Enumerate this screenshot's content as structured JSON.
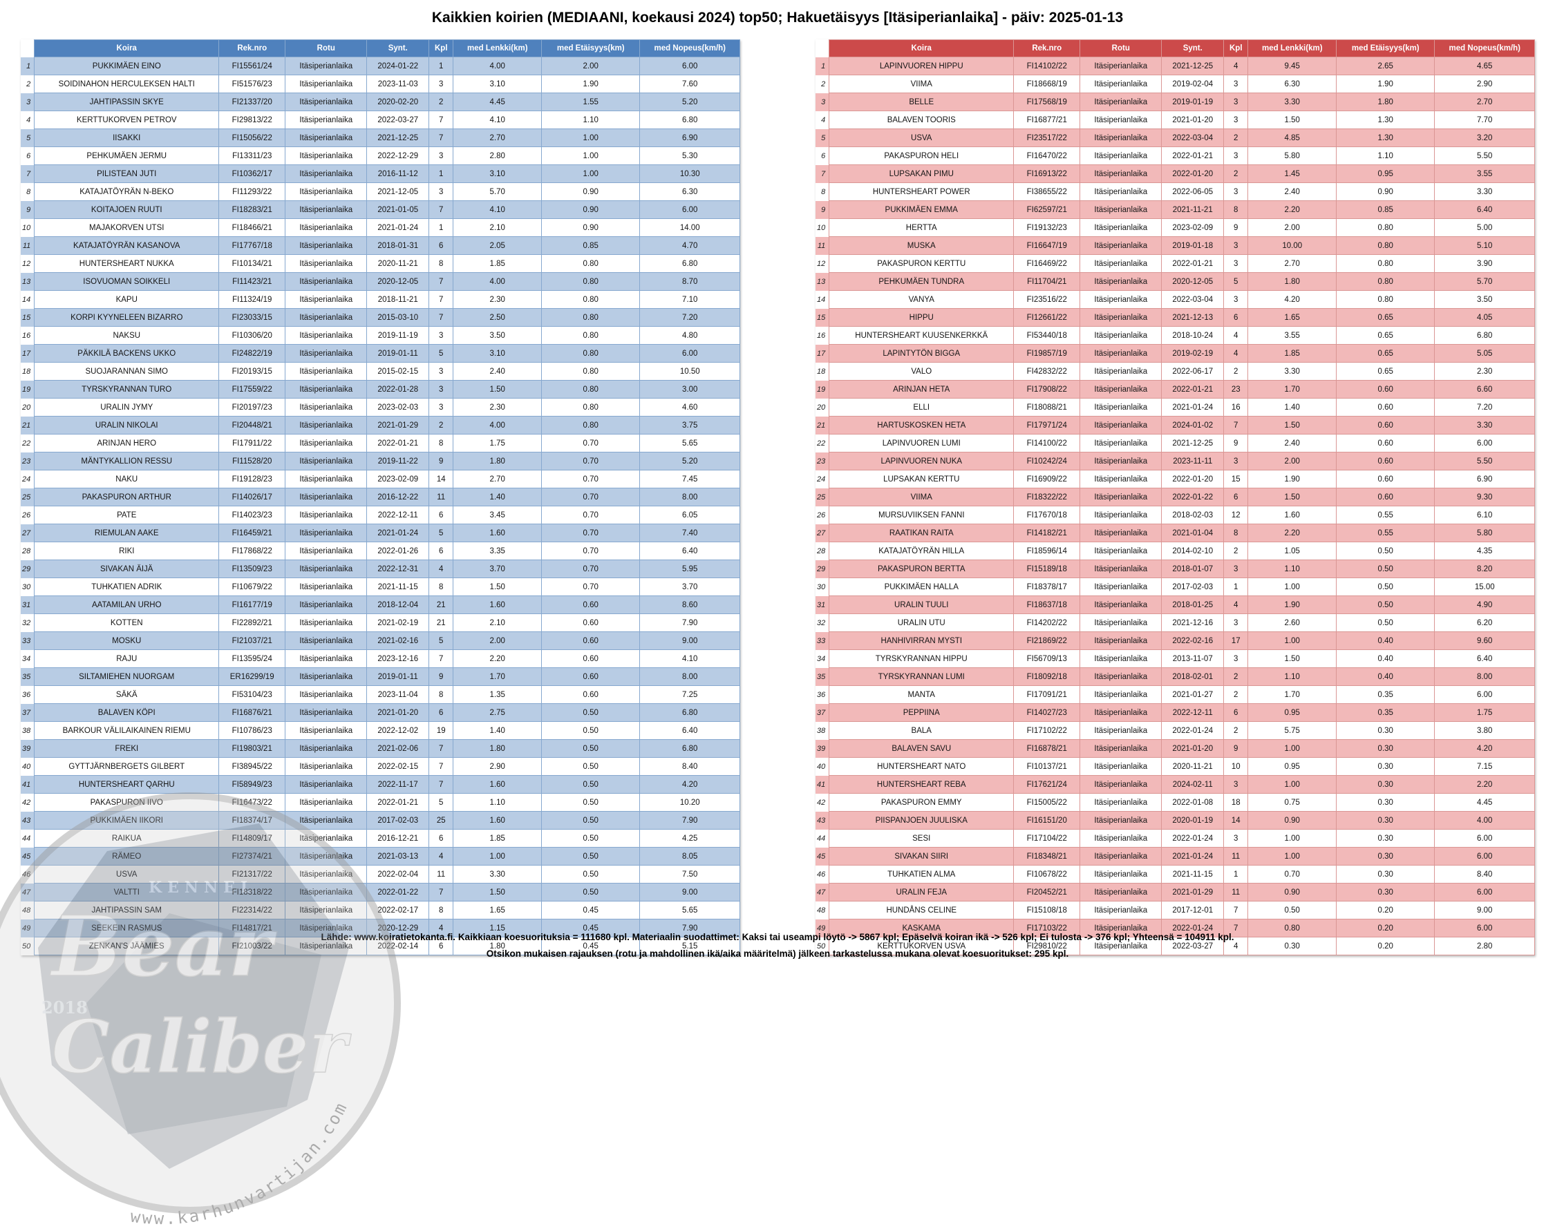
{
  "title": "Kaikkien koirien (MEDIAANI, koekausi 2024) top50; Hakuetäisyys [Itäsiperianlaika] - päiv: 2025-01-13",
  "columns": [
    "Koira",
    "Rek.nro",
    "Rotu",
    "Synt.",
    "Kpl",
    "med Lenkki(km)",
    "med Etäisyys(km)",
    "med Nopeus(km/h)"
  ],
  "breed": "Itäsiperianlaika",
  "left_table": {
    "colors": {
      "header": "#4f81bd",
      "row_alt": "#b8cce4",
      "border": "#86a8cf"
    },
    "rows": [
      [
        "1",
        "PUKKIMÄEN EINO",
        "FI15561/24",
        "2024-01-22",
        "1",
        "4.00",
        "2.00",
        "6.00"
      ],
      [
        "2",
        "SOIDINAHON HERCULEKSEN HALTI",
        "FI51576/23",
        "2023-11-03",
        "3",
        "3.10",
        "1.90",
        "7.60"
      ],
      [
        "3",
        "JAHTIPASSIN SKYE",
        "FI21337/20",
        "2020-02-20",
        "2",
        "4.45",
        "1.55",
        "5.20"
      ],
      [
        "4",
        "KERTTUKORVEN PETROV",
        "FI29813/22",
        "2022-03-27",
        "7",
        "4.10",
        "1.10",
        "6.80"
      ],
      [
        "5",
        "IISAKKI",
        "FI15056/22",
        "2021-12-25",
        "7",
        "2.70",
        "1.00",
        "6.90"
      ],
      [
        "6",
        "PEHKUMÄEN JERMU",
        "FI13311/23",
        "2022-12-29",
        "3",
        "2.80",
        "1.00",
        "5.30"
      ],
      [
        "7",
        "PILISTEAN JUTI",
        "FI10362/17",
        "2016-11-12",
        "1",
        "3.10",
        "1.00",
        "10.30"
      ],
      [
        "8",
        "KATAJATÖYRÄN N-BEKO",
        "FI11293/22",
        "2021-12-05",
        "3",
        "5.70",
        "0.90",
        "6.30"
      ],
      [
        "9",
        "KOITAJOEN RUUTI",
        "FI18283/21",
        "2021-01-05",
        "7",
        "4.10",
        "0.90",
        "6.00"
      ],
      [
        "10",
        "MAJAKORVEN UTSI",
        "FI18466/21",
        "2021-01-24",
        "1",
        "2.10",
        "0.90",
        "14.00"
      ],
      [
        "11",
        "KATAJATÖYRÄN KASANOVA",
        "FI17767/18",
        "2018-01-31",
        "6",
        "2.05",
        "0.85",
        "4.70"
      ],
      [
        "12",
        "HUNTERSHEART NUKKA",
        "FI10134/21",
        "2020-11-21",
        "8",
        "1.85",
        "0.80",
        "6.80"
      ],
      [
        "13",
        "ISOVUOMAN SOIKKELI",
        "FI11423/21",
        "2020-12-05",
        "7",
        "4.00",
        "0.80",
        "8.70"
      ],
      [
        "14",
        "KAPU",
        "FI11324/19",
        "2018-11-21",
        "7",
        "2.30",
        "0.80",
        "7.10"
      ],
      [
        "15",
        "KORPI KYYNELEEN BIZARRO",
        "FI23033/15",
        "2015-03-10",
        "7",
        "2.50",
        "0.80",
        "7.20"
      ],
      [
        "16",
        "NAKSU",
        "FI10306/20",
        "2019-11-19",
        "3",
        "3.50",
        "0.80",
        "4.80"
      ],
      [
        "17",
        "PÄKKILÄ BACKENS UKKO",
        "FI24822/19",
        "2019-01-11",
        "5",
        "3.10",
        "0.80",
        "6.00"
      ],
      [
        "18",
        "SUOJARANNAN SIMO",
        "FI20193/15",
        "2015-02-15",
        "3",
        "2.40",
        "0.80",
        "10.50"
      ],
      [
        "19",
        "TYRSKYRANNAN TURO",
        "FI17559/22",
        "2022-01-28",
        "3",
        "1.50",
        "0.80",
        "3.00"
      ],
      [
        "20",
        "URALIN JYMY",
        "FI20197/23",
        "2023-02-03",
        "3",
        "2.30",
        "0.80",
        "4.60"
      ],
      [
        "21",
        "URALIN NIKOLAI",
        "FI20448/21",
        "2021-01-29",
        "2",
        "4.00",
        "0.80",
        "3.75"
      ],
      [
        "22",
        "ARINJAN HERO",
        "FI17911/22",
        "2022-01-21",
        "8",
        "1.75",
        "0.70",
        "5.65"
      ],
      [
        "23",
        "MÄNTYKALLION RESSU",
        "FI11528/20",
        "2019-11-22",
        "9",
        "1.80",
        "0.70",
        "5.20"
      ],
      [
        "24",
        "NAKU",
        "FI19128/23",
        "2023-02-09",
        "14",
        "2.70",
        "0.70",
        "7.45"
      ],
      [
        "25",
        "PAKASPURON ARTHUR",
        "FI14026/17",
        "2016-12-22",
        "11",
        "1.40",
        "0.70",
        "8.00"
      ],
      [
        "26",
        "PATE",
        "FI14023/23",
        "2022-12-11",
        "6",
        "3.45",
        "0.70",
        "6.05"
      ],
      [
        "27",
        "RIEMULAN AAKE",
        "FI16459/21",
        "2021-01-24",
        "5",
        "1.60",
        "0.70",
        "7.40"
      ],
      [
        "28",
        "RIKI",
        "FI17868/22",
        "2022-01-26",
        "6",
        "3.35",
        "0.70",
        "6.40"
      ],
      [
        "29",
        "SIVAKAN ÄIJÄ",
        "FI13509/23",
        "2022-12-31",
        "4",
        "3.70",
        "0.70",
        "5.95"
      ],
      [
        "30",
        "TUHKATIEN ADRIK",
        "FI10679/22",
        "2021-11-15",
        "8",
        "1.50",
        "0.70",
        "3.70"
      ],
      [
        "31",
        "AATAMILAN URHO",
        "FI16177/19",
        "2018-12-04",
        "21",
        "1.60",
        "0.60",
        "8.60"
      ],
      [
        "32",
        "KOTTEN",
        "FI22892/21",
        "2021-02-19",
        "21",
        "2.10",
        "0.60",
        "7.90"
      ],
      [
        "33",
        "MOSKU",
        "FI21037/21",
        "2021-02-16",
        "5",
        "2.00",
        "0.60",
        "9.00"
      ],
      [
        "34",
        "RAJU",
        "FI13595/24",
        "2023-12-16",
        "7",
        "2.20",
        "0.60",
        "4.10"
      ],
      [
        "35",
        "SILTAMIEHEN NUORGAM",
        "ER16299/19",
        "2019-01-11",
        "9",
        "1.70",
        "0.60",
        "8.00"
      ],
      [
        "36",
        "SÄKÄ",
        "FI53104/23",
        "2023-11-04",
        "8",
        "1.35",
        "0.60",
        "7.25"
      ],
      [
        "37",
        "BALAVEN KÖPI",
        "FI16876/21",
        "2021-01-20",
        "6",
        "2.75",
        "0.50",
        "6.80"
      ],
      [
        "38",
        "BARKOUR VÄLILAIKAINEN RIEMU",
        "FI10786/23",
        "2022-12-02",
        "19",
        "1.40",
        "0.50",
        "6.40"
      ],
      [
        "39",
        "FREKI",
        "FI19803/21",
        "2021-02-06",
        "7",
        "1.80",
        "0.50",
        "6.80"
      ],
      [
        "40",
        "GYTTJÄRNBERGETS GILBERT",
        "FI38945/22",
        "2022-02-15",
        "7",
        "2.90",
        "0.50",
        "8.40"
      ],
      [
        "41",
        "HUNTERSHEART QARHU",
        "FI58949/23",
        "2022-11-17",
        "7",
        "1.60",
        "0.50",
        "4.20"
      ],
      [
        "42",
        "PAKASPURON IIVO",
        "FI16473/22",
        "2022-01-21",
        "5",
        "1.10",
        "0.50",
        "10.20"
      ],
      [
        "43",
        "PUKKIMÄEN IIKORI",
        "FI18374/17",
        "2017-02-03",
        "25",
        "1.60",
        "0.50",
        "7.90"
      ],
      [
        "44",
        "RAIKUA",
        "FI14809/17",
        "2016-12-21",
        "6",
        "1.85",
        "0.50",
        "4.25"
      ],
      [
        "45",
        "RÄMEO",
        "FI27374/21",
        "2021-03-13",
        "4",
        "1.00",
        "0.50",
        "8.05"
      ],
      [
        "46",
        "USVA",
        "FI21317/22",
        "2022-02-04",
        "11",
        "3.30",
        "0.50",
        "7.50"
      ],
      [
        "47",
        "VALTTI",
        "FI18318/22",
        "2022-01-22",
        "7",
        "1.50",
        "0.50",
        "9.00"
      ],
      [
        "48",
        "JAHTIPASSIN SAM",
        "FI22314/22",
        "2022-02-17",
        "8",
        "1.65",
        "0.45",
        "5.65"
      ],
      [
        "49",
        "SEEKEIN RASMUS",
        "FI14817/21",
        "2020-12-29",
        "4",
        "1.15",
        "0.45",
        "7.90"
      ],
      [
        "50",
        "ZENKAN'S JÄÄMIES",
        "FI21003/22",
        "2022-02-14",
        "6",
        "1.80",
        "0.45",
        "5.15"
      ]
    ]
  },
  "right_table": {
    "colors": {
      "header": "#cc4a4a",
      "row_alt": "#f2b9b9",
      "border": "#da9694"
    },
    "rows": [
      [
        "1",
        "LAPINVUOREN HIPPU",
        "FI14102/22",
        "2021-12-25",
        "4",
        "9.45",
        "2.65",
        "4.65"
      ],
      [
        "2",
        "VIIMA",
        "FI18668/19",
        "2019-02-04",
        "3",
        "6.30",
        "1.90",
        "2.90"
      ],
      [
        "3",
        "BELLE",
        "FI17568/19",
        "2019-01-19",
        "3",
        "3.30",
        "1.80",
        "2.70"
      ],
      [
        "4",
        "BALAVEN TOORIS",
        "FI16877/21",
        "2021-01-20",
        "3",
        "1.50",
        "1.30",
        "7.70"
      ],
      [
        "5",
        "USVA",
        "FI23517/22",
        "2022-03-04",
        "2",
        "4.85",
        "1.30",
        "3.20"
      ],
      [
        "6",
        "PAKASPURON HELI",
        "FI16470/22",
        "2022-01-21",
        "3",
        "5.80",
        "1.10",
        "5.50"
      ],
      [
        "7",
        "LUPSAKAN PIMU",
        "FI16913/22",
        "2022-01-20",
        "2",
        "1.45",
        "0.95",
        "3.55"
      ],
      [
        "8",
        "HUNTERSHEART POWER",
        "FI38655/22",
        "2022-06-05",
        "3",
        "2.40",
        "0.90",
        "3.30"
      ],
      [
        "9",
        "PUKKIMÄEN EMMA",
        "FI62597/21",
        "2021-11-21",
        "8",
        "2.20",
        "0.85",
        "6.40"
      ],
      [
        "10",
        "HERTTA",
        "FI19132/23",
        "2023-02-09",
        "9",
        "2.00",
        "0.80",
        "5.00"
      ],
      [
        "11",
        "MUSKA",
        "FI16647/19",
        "2019-01-18",
        "3",
        "10.00",
        "0.80",
        "5.10"
      ],
      [
        "12",
        "PAKASPURON KERTTU",
        "FI16469/22",
        "2022-01-21",
        "3",
        "2.70",
        "0.80",
        "3.90"
      ],
      [
        "13",
        "PEHKUMÄEN TUNDRA",
        "FI11704/21",
        "2020-12-05",
        "5",
        "1.80",
        "0.80",
        "5.70"
      ],
      [
        "14",
        "VANYA",
        "FI23516/22",
        "2022-03-04",
        "3",
        "4.20",
        "0.80",
        "3.50"
      ],
      [
        "15",
        "HIPPU",
        "FI12661/22",
        "2021-12-13",
        "6",
        "1.65",
        "0.65",
        "4.05"
      ],
      [
        "16",
        "HUNTERSHEART KUUSENKERKKÄ",
        "FI53440/18",
        "2018-10-24",
        "4",
        "3.55",
        "0.65",
        "6.80"
      ],
      [
        "17",
        "LAPINTYTÖN BIGGA",
        "FI19857/19",
        "2019-02-19",
        "4",
        "1.85",
        "0.65",
        "5.05"
      ],
      [
        "18",
        "VALO",
        "FI42832/22",
        "2022-06-17",
        "2",
        "3.30",
        "0.65",
        "2.30"
      ],
      [
        "19",
        "ARINJAN HETA",
        "FI17908/22",
        "2022-01-21",
        "23",
        "1.70",
        "0.60",
        "6.60"
      ],
      [
        "20",
        "ELLI",
        "FI18088/21",
        "2021-01-24",
        "16",
        "1.40",
        "0.60",
        "7.20"
      ],
      [
        "21",
        "HARTUSKOSKEN HETA",
        "FI17971/24",
        "2024-01-02",
        "7",
        "1.50",
        "0.60",
        "3.30"
      ],
      [
        "22",
        "LAPINVUOREN LUMI",
        "FI14100/22",
        "2021-12-25",
        "9",
        "2.40",
        "0.60",
        "6.00"
      ],
      [
        "23",
        "LAPINVUOREN NUKA",
        "FI10242/24",
        "2023-11-11",
        "3",
        "2.00",
        "0.60",
        "5.50"
      ],
      [
        "24",
        "LUPSAKAN KERTTU",
        "FI16909/22",
        "2022-01-20",
        "15",
        "1.90",
        "0.60",
        "6.90"
      ],
      [
        "25",
        "VIIMA",
        "FI18322/22",
        "2022-01-22",
        "6",
        "1.50",
        "0.60",
        "9.30"
      ],
      [
        "26",
        "MURSUVIIKSEN FANNI",
        "FI17670/18",
        "2018-02-03",
        "12",
        "1.60",
        "0.55",
        "6.10"
      ],
      [
        "27",
        "RAATIKAN RAITA",
        "FI14182/21",
        "2021-01-04",
        "8",
        "2.20",
        "0.55",
        "5.80"
      ],
      [
        "28",
        "KATAJATÖYRÄN HILLA",
        "FI18596/14",
        "2014-02-10",
        "2",
        "1.05",
        "0.50",
        "4.35"
      ],
      [
        "29",
        "PAKASPURON BERTTA",
        "FI15189/18",
        "2018-01-07",
        "3",
        "1.10",
        "0.50",
        "8.20"
      ],
      [
        "30",
        "PUKKIMÄEN HALLA",
        "FI18378/17",
        "2017-02-03",
        "1",
        "1.00",
        "0.50",
        "15.00"
      ],
      [
        "31",
        "URALIN TUULI",
        "FI18637/18",
        "2018-01-25",
        "4",
        "1.90",
        "0.50",
        "4.90"
      ],
      [
        "32",
        "URALIN UTU",
        "FI14202/22",
        "2021-12-16",
        "3",
        "2.60",
        "0.50",
        "6.20"
      ],
      [
        "33",
        "HANHIVIRRAN MYSTI",
        "FI21869/22",
        "2022-02-16",
        "17",
        "1.00",
        "0.40",
        "9.60"
      ],
      [
        "34",
        "TYRSKYRANNAN HIPPU",
        "FI56709/13",
        "2013-11-07",
        "3",
        "1.50",
        "0.40",
        "6.40"
      ],
      [
        "35",
        "TYRSKYRANNAN LUMI",
        "FI18092/18",
        "2018-02-01",
        "2",
        "1.10",
        "0.40",
        "8.00"
      ],
      [
        "36",
        "MANTA",
        "FI17091/21",
        "2021-01-27",
        "2",
        "1.70",
        "0.35",
        "6.00"
      ],
      [
        "37",
        "PEPPIINA",
        "FI14027/23",
        "2022-12-11",
        "6",
        "0.95",
        "0.35",
        "1.75"
      ],
      [
        "38",
        "BALA",
        "FI17102/22",
        "2022-01-24",
        "2",
        "5.75",
        "0.30",
        "3.80"
      ],
      [
        "39",
        "BALAVEN SAVU",
        "FI16878/21",
        "2021-01-20",
        "9",
        "1.00",
        "0.30",
        "4.20"
      ],
      [
        "40",
        "HUNTERSHEART NATO",
        "FI10137/21",
        "2020-11-21",
        "10",
        "0.95",
        "0.30",
        "7.15"
      ],
      [
        "41",
        "HUNTERSHEART REBA",
        "FI17621/24",
        "2024-02-11",
        "3",
        "1.00",
        "0.30",
        "2.20"
      ],
      [
        "42",
        "PAKASPURON EMMY",
        "FI15005/22",
        "2022-01-08",
        "18",
        "0.75",
        "0.30",
        "4.45"
      ],
      [
        "43",
        "PIISPANJOEN JUULISKA",
        "FI16151/20",
        "2020-01-19",
        "14",
        "0.90",
        "0.30",
        "4.00"
      ],
      [
        "44",
        "SESI",
        "FI17104/22",
        "2022-01-24",
        "3",
        "1.00",
        "0.30",
        "6.00"
      ],
      [
        "45",
        "SIVAKAN SIIRI",
        "FI18348/21",
        "2021-01-24",
        "11",
        "1.00",
        "0.30",
        "6.00"
      ],
      [
        "46",
        "TUHKATIEN ALMA",
        "FI10678/22",
        "2021-11-15",
        "1",
        "0.70",
        "0.30",
        "8.40"
      ],
      [
        "47",
        "URALIN FEJA",
        "FI20452/21",
        "2021-01-29",
        "11",
        "0.90",
        "0.30",
        "6.00"
      ],
      [
        "48",
        "HUNDÅNS CELINE",
        "FI15108/18",
        "2017-12-01",
        "7",
        "0.50",
        "0.20",
        "9.00"
      ],
      [
        "49",
        "KASKAMA",
        "FI17103/22",
        "2022-01-24",
        "7",
        "0.80",
        "0.20",
        "6.00"
      ],
      [
        "50",
        "KERTTUKORVEN USVA",
        "FI29810/22",
        "2022-03-27",
        "4",
        "0.30",
        "0.20",
        "2.80"
      ]
    ]
  },
  "footer": {
    "line1": "Lähde: www.koiratietokanta.fi. Kaikkiaan koesuorituksia = 111680 kpl. Materiaalin suodattimet: Kaksi tai useampi löytö -> 5867 kpl; Epäselvä koiran ikä -> 526 kpl; Ei tulosta -> 376 kpl; Yhteensä = 104911 kpl.",
    "line2": "Otsikon mukaisen rajauksen (rotu ja mahdollinen ikä/aika määritelmä) jälkeen tarkastelussa mukana olevat koesuoritukset: 295 kpl."
  },
  "watermark": {
    "kennel": "KENNEL",
    "name1": "Bear",
    "name2": "Caliber",
    "year": "2018",
    "url": "www.karhunvartijan.com"
  }
}
